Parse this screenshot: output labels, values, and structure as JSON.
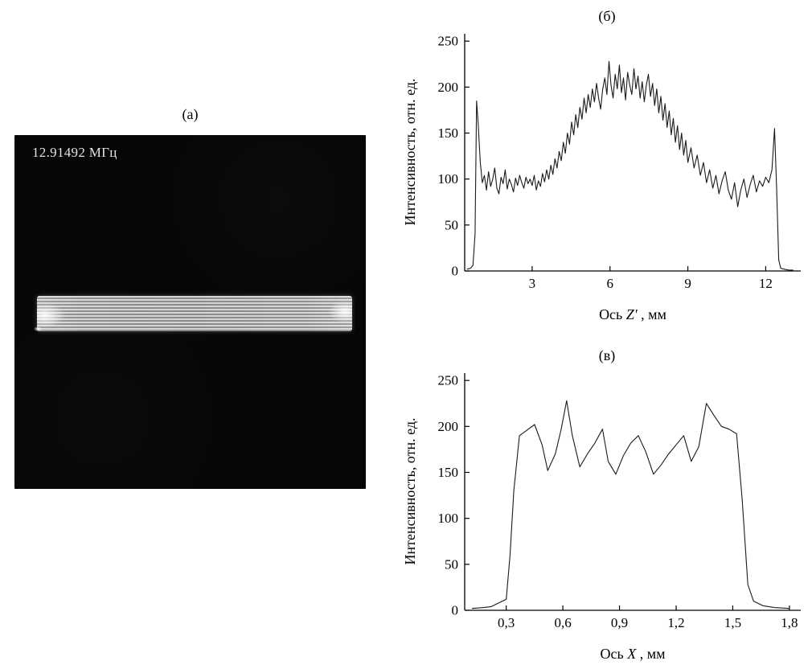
{
  "page": {
    "background": "#ffffff"
  },
  "panel_a": {
    "label": "(а)",
    "annotation": "12.91492 МГц"
  },
  "chart_data": [
    {
      "id": "panel-b",
      "type": "line",
      "title": "(б)",
      "xlabel_prefix": "Ось ",
      "xlabel_var": "Z'",
      "xlabel_suffix": " , мм",
      "ylabel": "Интенсивность, отн. ед.",
      "xlim": [
        0.4,
        13.35
      ],
      "ylim": [
        0,
        258
      ],
      "xticks": [
        3,
        6,
        9,
        12
      ],
      "xtick_labels": [
        "3",
        "6",
        "9",
        "12"
      ],
      "yticks": [
        0,
        50,
        100,
        150,
        200,
        250
      ],
      "ytick_labels": [
        "0",
        "50",
        "100",
        "150",
        "200",
        "250"
      ],
      "grid": false,
      "legend": null,
      "line_color": "#1a1a1a",
      "series": [
        {
          "name": "intensity-profile-z",
          "points": [
            [
              0.5,
              2
            ],
            [
              0.62,
              3
            ],
            [
              0.72,
              6
            ],
            [
              0.8,
              40
            ],
            [
              0.86,
              185
            ],
            [
              0.92,
              160
            ],
            [
              1.0,
              118
            ],
            [
              1.08,
              96
            ],
            [
              1.16,
              104
            ],
            [
              1.24,
              88
            ],
            [
              1.32,
              108
            ],
            [
              1.4,
              92
            ],
            [
              1.48,
              100
            ],
            [
              1.56,
              112
            ],
            [
              1.64,
              90
            ],
            [
              1.72,
              84
            ],
            [
              1.8,
              102
            ],
            [
              1.88,
              95
            ],
            [
              1.96,
              110
            ],
            [
              2.04,
              89
            ],
            [
              2.12,
              100
            ],
            [
              2.2,
              94
            ],
            [
              2.28,
              86
            ],
            [
              2.36,
              101
            ],
            [
              2.44,
              93
            ],
            [
              2.52,
              104
            ],
            [
              2.6,
              96
            ],
            [
              2.68,
              90
            ],
            [
              2.76,
              102
            ],
            [
              2.84,
              95
            ],
            [
              2.92,
              100
            ],
            [
              3.0,
              93
            ],
            [
              3.08,
              104
            ],
            [
              3.16,
              88
            ],
            [
              3.24,
              98
            ],
            [
              3.32,
              92
            ],
            [
              3.4,
              106
            ],
            [
              3.48,
              97
            ],
            [
              3.56,
              110
            ],
            [
              3.64,
              100
            ],
            [
              3.72,
              115
            ],
            [
              3.8,
              105
            ],
            [
              3.88,
              122
            ],
            [
              3.96,
              112
            ],
            [
              4.04,
              130
            ],
            [
              4.12,
              120
            ],
            [
              4.2,
              140
            ],
            [
              4.28,
              128
            ],
            [
              4.36,
              150
            ],
            [
              4.44,
              138
            ],
            [
              4.52,
              162
            ],
            [
              4.6,
              148
            ],
            [
              4.68,
              170
            ],
            [
              4.76,
              156
            ],
            [
              4.84,
              178
            ],
            [
              4.92,
              165
            ],
            [
              5.0,
              188
            ],
            [
              5.08,
              172
            ],
            [
              5.16,
              192
            ],
            [
              5.24,
              178
            ],
            [
              5.32,
              198
            ],
            [
              5.4,
              184
            ],
            [
              5.48,
              204
            ],
            [
              5.56,
              188
            ],
            [
              5.64,
              176
            ],
            [
              5.72,
              198
            ],
            [
              5.8,
              210
            ],
            [
              5.88,
              192
            ],
            [
              5.96,
              228
            ],
            [
              6.04,
              202
            ],
            [
              6.12,
              188
            ],
            [
              6.2,
              214
            ],
            [
              6.28,
              198
            ],
            [
              6.36,
              224
            ],
            [
              6.44,
              194
            ],
            [
              6.52,
              210
            ],
            [
              6.6,
              186
            ],
            [
              6.68,
              216
            ],
            [
              6.76,
              202
            ],
            [
              6.84,
              192
            ],
            [
              6.92,
              220
            ],
            [
              7.0,
              198
            ],
            [
              7.08,
              212
            ],
            [
              7.16,
              188
            ],
            [
              7.24,
              206
            ],
            [
              7.32,
              184
            ],
            [
              7.4,
              202
            ],
            [
              7.48,
              214
            ],
            [
              7.56,
              190
            ],
            [
              7.64,
              204
            ],
            [
              7.72,
              180
            ],
            [
              7.8,
              198
            ],
            [
              7.88,
              172
            ],
            [
              7.96,
              190
            ],
            [
              8.04,
              164
            ],
            [
              8.12,
              182
            ],
            [
              8.2,
              156
            ],
            [
              8.28,
              174
            ],
            [
              8.36,
              148
            ],
            [
              8.44,
              166
            ],
            [
              8.52,
              140
            ],
            [
              8.6,
              158
            ],
            [
              8.68,
              132
            ],
            [
              8.76,
              150
            ],
            [
              8.84,
              126
            ],
            [
              8.92,
              142
            ],
            [
              9.0,
              118
            ],
            [
              9.12,
              134
            ],
            [
              9.24,
              112
            ],
            [
              9.36,
              126
            ],
            [
              9.48,
              104
            ],
            [
              9.6,
              118
            ],
            [
              9.72,
              96
            ],
            [
              9.84,
              110
            ],
            [
              9.96,
              90
            ],
            [
              10.08,
              104
            ],
            [
              10.2,
              84
            ],
            [
              10.32,
              98
            ],
            [
              10.44,
              108
            ],
            [
              10.56,
              88
            ],
            [
              10.68,
              78
            ],
            [
              10.8,
              96
            ],
            [
              10.92,
              70
            ],
            [
              11.04,
              88
            ],
            [
              11.16,
              100
            ],
            [
              11.28,
              80
            ],
            [
              11.4,
              94
            ],
            [
              11.52,
              104
            ],
            [
              11.64,
              86
            ],
            [
              11.76,
              98
            ],
            [
              11.88,
              92
            ],
            [
              12.0,
              102
            ],
            [
              12.12,
              96
            ],
            [
              12.24,
              110
            ],
            [
              12.34,
              155
            ],
            [
              12.42,
              90
            ],
            [
              12.5,
              12
            ],
            [
              12.58,
              3
            ],
            [
              12.7,
              2
            ],
            [
              12.9,
              1
            ],
            [
              13.05,
              1
            ]
          ]
        }
      ]
    },
    {
      "id": "panel-v",
      "type": "line",
      "title": "(в)",
      "xlabel_prefix": "Ось ",
      "xlabel_var": "X",
      "xlabel_suffix": " , мм",
      "ylabel": "Интенсивность, отн. ед.",
      "xlim": [
        0.08,
        1.86
      ],
      "ylim": [
        0,
        258
      ],
      "xticks": [
        0.3,
        0.6,
        0.9,
        1.2,
        1.5,
        1.8
      ],
      "xtick_labels": [
        "0,3",
        "0,6",
        "0,9",
        "1,2",
        "1,5",
        "1,8"
      ],
      "yticks": [
        0,
        50,
        100,
        150,
        200,
        250
      ],
      "ytick_labels": [
        "0",
        "50",
        "100",
        "150",
        "200",
        "250"
      ],
      "grid": false,
      "legend": null,
      "line_color": "#1a1a1a",
      "series": [
        {
          "name": "intensity-profile-x",
          "points": [
            [
              0.12,
              2
            ],
            [
              0.18,
              3
            ],
            [
              0.22,
              4
            ],
            [
              0.26,
              8
            ],
            [
              0.3,
              12
            ],
            [
              0.32,
              60
            ],
            [
              0.34,
              130
            ],
            [
              0.37,
              190
            ],
            [
              0.41,
              196
            ],
            [
              0.45,
              202
            ],
            [
              0.49,
              180
            ],
            [
              0.52,
              152
            ],
            [
              0.56,
              170
            ],
            [
              0.59,
              196
            ],
            [
              0.62,
              228
            ],
            [
              0.65,
              190
            ],
            [
              0.69,
              156
            ],
            [
              0.73,
              170
            ],
            [
              0.77,
              182
            ],
            [
              0.81,
              197
            ],
            [
              0.84,
              162
            ],
            [
              0.88,
              148
            ],
            [
              0.92,
              168
            ],
            [
              0.96,
              182
            ],
            [
              1.0,
              190
            ],
            [
              1.04,
              172
            ],
            [
              1.08,
              148
            ],
            [
              1.12,
              158
            ],
            [
              1.16,
              170
            ],
            [
              1.2,
              180
            ],
            [
              1.24,
              190
            ],
            [
              1.28,
              162
            ],
            [
              1.32,
              178
            ],
            [
              1.36,
              225
            ],
            [
              1.4,
              212
            ],
            [
              1.44,
              200
            ],
            [
              1.48,
              197
            ],
            [
              1.52,
              192
            ],
            [
              1.55,
              120
            ],
            [
              1.58,
              28
            ],
            [
              1.61,
              10
            ],
            [
              1.66,
              5
            ],
            [
              1.72,
              3
            ],
            [
              1.8,
              2
            ]
          ]
        }
      ]
    }
  ]
}
